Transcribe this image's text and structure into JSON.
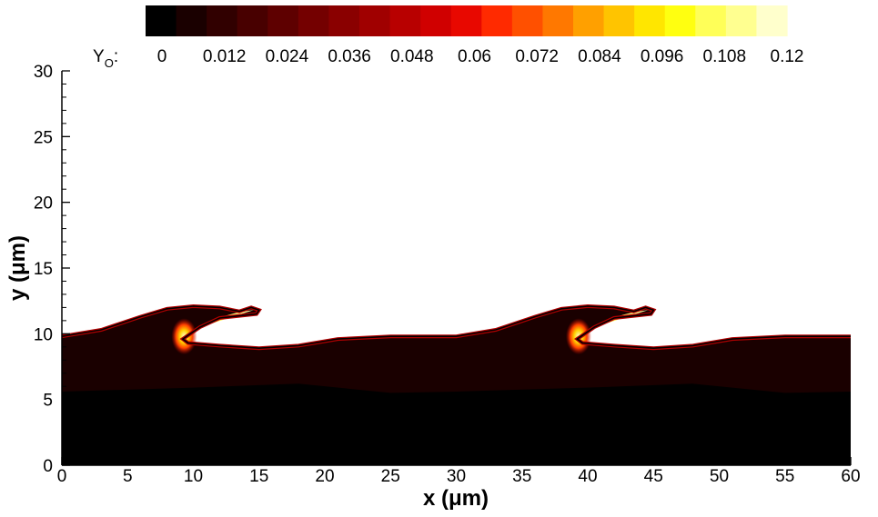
{
  "chart_data": {
    "type": "heatmap",
    "title": "",
    "colorbar": {
      "label_main": "Y",
      "label_sub": "O",
      "label_suffix": ":",
      "tick_labels": [
        "0",
        "0.012",
        "0.024",
        "0.036",
        "0.048",
        "0.06",
        "0.072",
        "0.084",
        "0.096",
        "0.108",
        "0.12"
      ],
      "range": [
        0,
        0.12
      ],
      "levels": 21,
      "colors": [
        "#000000",
        "#1a0000",
        "#310000",
        "#480000",
        "#5e0000",
        "#740000",
        "#8a0000",
        "#a00000",
        "#b80000",
        "#d00000",
        "#e80800",
        "#ff2a00",
        "#ff5000",
        "#ff7800",
        "#ffa000",
        "#ffc400",
        "#ffe600",
        "#ffff10",
        "#ffff58",
        "#ffff90",
        "#ffffcc"
      ],
      "placement": "top"
    },
    "x_axis": {
      "label_main": "x (",
      "label_unit": "μm",
      "label_close": ")",
      "range": [
        0,
        60
      ],
      "ticks": [
        0,
        5,
        10,
        15,
        20,
        25,
        30,
        35,
        40,
        45,
        50,
        55,
        60
      ],
      "tick_labels": [
        "0",
        "5",
        "10",
        "15",
        "20",
        "25",
        "30",
        "35",
        "40",
        "45",
        "50",
        "55",
        "60"
      ]
    },
    "y_axis": {
      "label_main": "y (",
      "label_unit": "μm",
      "label_close": ")",
      "range": [
        0,
        30
      ],
      "ticks": [
        0,
        5,
        10,
        15,
        20,
        25,
        30
      ],
      "tick_labels": [
        "0",
        "5",
        "10",
        "15",
        "20",
        "25",
        "30"
      ]
    },
    "grid": false,
    "interface_contour": {
      "period": 30,
      "points": [
        [
          0,
          9.8
        ],
        [
          3,
          10.3
        ],
        [
          6,
          11.3
        ],
        [
          8,
          11.9
        ],
        [
          10,
          12.1
        ],
        [
          12,
          12.0
        ],
        [
          13.5,
          11.7
        ],
        [
          14.4,
          12.0
        ],
        [
          15,
          11.8
        ],
        [
          14.8,
          11.5
        ],
        [
          12,
          11.2
        ],
        [
          10.5,
          10.5
        ],
        [
          9.2,
          9.6
        ],
        [
          9.6,
          9.3
        ],
        [
          12,
          9.1
        ],
        [
          15,
          8.9
        ],
        [
          18,
          9.1
        ],
        [
          21,
          9.6
        ],
        [
          25,
          9.8
        ],
        [
          30,
          9.8
        ]
      ]
    },
    "concentration_field": {
      "interface_band_value": 0.12,
      "wave_head_value": 0.12,
      "liquid_value": 0.01,
      "core_value": 0.0,
      "core_top_y": [
        [
          0,
          5.6
        ],
        [
          10,
          5.9
        ],
        [
          18,
          6.2
        ],
        [
          25,
          5.5
        ],
        [
          30,
          5.6
        ],
        [
          40,
          5.9
        ],
        [
          48,
          6.2
        ],
        [
          55,
          5.5
        ],
        [
          60,
          5.6
        ]
      ]
    }
  }
}
